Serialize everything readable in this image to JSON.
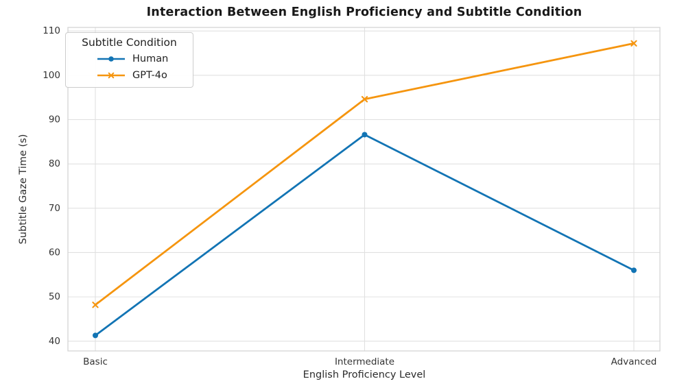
{
  "chart_data": {
    "type": "line",
    "title": "Interaction Between English Proficiency and Subtitle Condition",
    "xlabel": "English Proficiency Level",
    "ylabel": "Subtitle Gaze Time (s)",
    "categories": [
      "Basic",
      "Intermediate",
      "Advanced"
    ],
    "series": [
      {
        "name": "Human",
        "values": [
          41.3,
          86.6,
          56.0
        ],
        "color": "#1274b4",
        "marker": "circle"
      },
      {
        "name": "GPT-4o",
        "values": [
          48.2,
          94.6,
          107.2
        ],
        "color": "#f5950f",
        "marker": "x"
      }
    ],
    "ylim": [
      37.8,
      110.8
    ],
    "yticks": [
      40,
      50,
      60,
      70,
      80,
      90,
      100,
      110
    ],
    "grid": true,
    "legend": {
      "title": "Subtitle Condition",
      "position": "upper left"
    }
  }
}
